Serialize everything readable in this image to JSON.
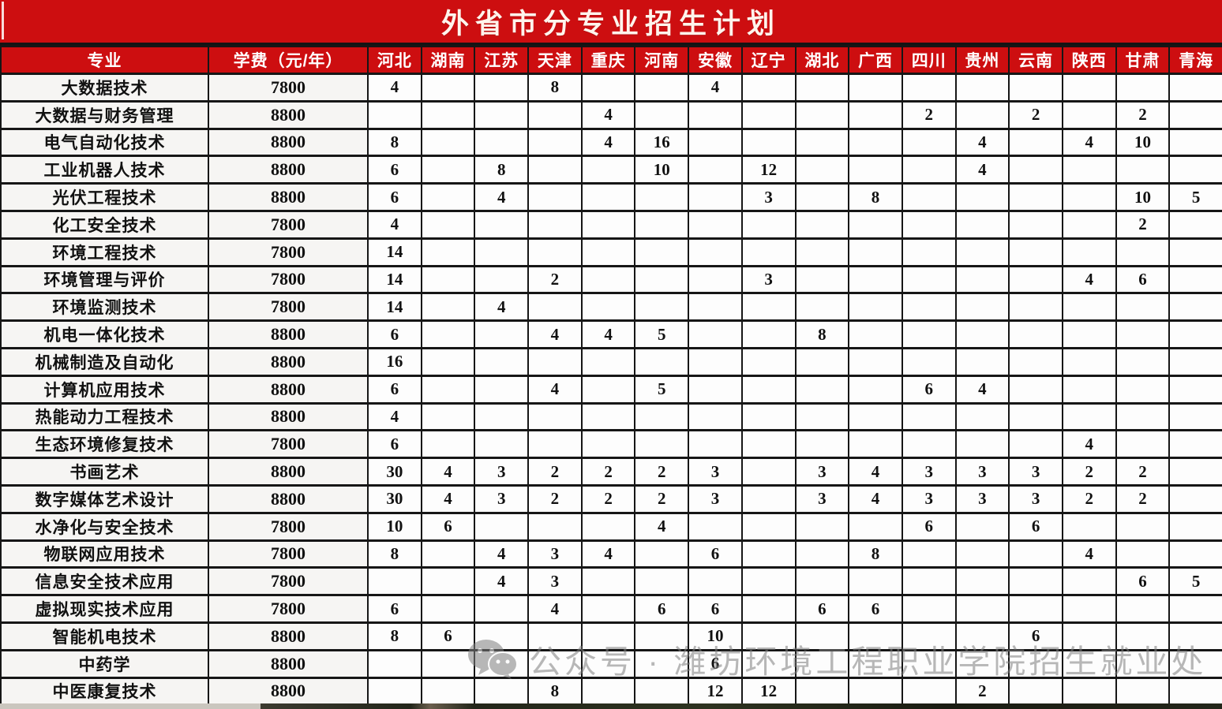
{
  "title": "外省市分专业招生计划",
  "watermark": {
    "icon": "wechat-icon",
    "text": "公众号 · 潍坊环境工程职业学院招生就业处"
  },
  "colors": {
    "title_bar_red": "#cd0e10",
    "header_red": "#cd0e10",
    "header_text": "#ffffff",
    "cell_border": "#161616",
    "left_column_bg": "#f6f5f3",
    "data_cell_bg": "#fdfdfd",
    "watermark_gray": "#7e7e7e"
  },
  "table": {
    "columns": [
      "专业",
      "学费（元/年）",
      "河北",
      "湖南",
      "江苏",
      "天津",
      "重庆",
      "河南",
      "安徽",
      "辽宁",
      "湖北",
      "广西",
      "四川",
      "贵州",
      "云南",
      "陕西",
      "甘肃",
      "青海"
    ],
    "rows": [
      {
        "major": "大数据技术",
        "tuition": "7800",
        "values": [
          "4",
          "",
          "",
          "8",
          "",
          "",
          "4",
          "",
          "",
          "",
          "",
          "",
          "",
          "",
          "",
          ""
        ]
      },
      {
        "major": "大数据与财务管理",
        "tuition": "8800",
        "values": [
          "",
          "",
          "",
          "",
          "4",
          "",
          "",
          "",
          "",
          "",
          "2",
          "",
          "2",
          "",
          "2",
          ""
        ]
      },
      {
        "major": "电气自动化技术",
        "tuition": "8800",
        "values": [
          "8",
          "",
          "",
          "",
          "4",
          "16",
          "",
          "",
          "",
          "",
          "",
          "4",
          "",
          "4",
          "10",
          ""
        ]
      },
      {
        "major": "工业机器人技术",
        "tuition": "8800",
        "values": [
          "6",
          "",
          "8",
          "",
          "",
          "10",
          "",
          "12",
          "",
          "",
          "",
          "4",
          "",
          "",
          "",
          ""
        ]
      },
      {
        "major": "光伏工程技术",
        "tuition": "8800",
        "values": [
          "6",
          "",
          "4",
          "",
          "",
          "",
          "",
          "3",
          "",
          "8",
          "",
          "",
          "",
          "",
          "10",
          "5"
        ]
      },
      {
        "major": "化工安全技术",
        "tuition": "7800",
        "values": [
          "4",
          "",
          "",
          "",
          "",
          "",
          "",
          "",
          "",
          "",
          "",
          "",
          "",
          "",
          "2",
          ""
        ]
      },
      {
        "major": "环境工程技术",
        "tuition": "7800",
        "values": [
          "14",
          "",
          "",
          "",
          "",
          "",
          "",
          "",
          "",
          "",
          "",
          "",
          "",
          "",
          "",
          ""
        ]
      },
      {
        "major": "环境管理与评价",
        "tuition": "7800",
        "values": [
          "14",
          "",
          "",
          "2",
          "",
          "",
          "",
          "3",
          "",
          "",
          "",
          "",
          "",
          "4",
          "6",
          ""
        ]
      },
      {
        "major": "环境监测技术",
        "tuition": "7800",
        "values": [
          "14",
          "",
          "4",
          "",
          "",
          "",
          "",
          "",
          "",
          "",
          "",
          "",
          "",
          "",
          "",
          ""
        ]
      },
      {
        "major": "机电一体化技术",
        "tuition": "8800",
        "values": [
          "6",
          "",
          "",
          "4",
          "4",
          "5",
          "",
          "",
          "8",
          "",
          "",
          "",
          "",
          "",
          "",
          ""
        ]
      },
      {
        "major": "机械制造及自动化",
        "tuition": "8800",
        "values": [
          "16",
          "",
          "",
          "",
          "",
          "",
          "",
          "",
          "",
          "",
          "",
          "",
          "",
          "",
          "",
          ""
        ]
      },
      {
        "major": "计算机应用技术",
        "tuition": "8800",
        "values": [
          "6",
          "",
          "",
          "4",
          "",
          "5",
          "",
          "",
          "",
          "",
          "6",
          "4",
          "",
          "",
          "",
          ""
        ]
      },
      {
        "major": "热能动力工程技术",
        "tuition": "8800",
        "values": [
          "4",
          "",
          "",
          "",
          "",
          "",
          "",
          "",
          "",
          "",
          "",
          "",
          "",
          "",
          "",
          ""
        ]
      },
      {
        "major": "生态环境修复技术",
        "tuition": "7800",
        "values": [
          "6",
          "",
          "",
          "",
          "",
          "",
          "",
          "",
          "",
          "",
          "",
          "",
          "",
          "4",
          "",
          ""
        ]
      },
      {
        "major": "书画艺术",
        "tuition": "8800",
        "values": [
          "30",
          "4",
          "3",
          "2",
          "2",
          "2",
          "3",
          "",
          "3",
          "4",
          "3",
          "3",
          "3",
          "2",
          "2",
          ""
        ]
      },
      {
        "major": "数字媒体艺术设计",
        "tuition": "8800",
        "values": [
          "30",
          "4",
          "3",
          "2",
          "2",
          "2",
          "3",
          "",
          "3",
          "4",
          "3",
          "3",
          "3",
          "2",
          "2",
          ""
        ]
      },
      {
        "major": "水净化与安全技术",
        "tuition": "7800",
        "values": [
          "10",
          "6",
          "",
          "",
          "",
          "4",
          "",
          "",
          "",
          "",
          "6",
          "",
          "6",
          "",
          "",
          ""
        ]
      },
      {
        "major": "物联网应用技术",
        "tuition": "7800",
        "values": [
          "8",
          "",
          "4",
          "3",
          "4",
          "",
          "6",
          "",
          "",
          "8",
          "",
          "",
          "",
          "4",
          "",
          ""
        ]
      },
      {
        "major": "信息安全技术应用",
        "tuition": "7800",
        "values": [
          "",
          "",
          "4",
          "3",
          "",
          "",
          "",
          "",
          "",
          "",
          "",
          "",
          "",
          "",
          "6",
          "5"
        ]
      },
      {
        "major": "虚拟现实技术应用",
        "tuition": "7800",
        "values": [
          "6",
          "",
          "",
          "4",
          "",
          "6",
          "6",
          "",
          "6",
          "6",
          "",
          "",
          "",
          "",
          "",
          ""
        ]
      },
      {
        "major": "智能机电技术",
        "tuition": "8800",
        "values": [
          "8",
          "6",
          "",
          "",
          "",
          "",
          "10",
          "",
          "",
          "",
          "",
          "",
          "6",
          "",
          "",
          ""
        ]
      },
      {
        "major": "中药学",
        "tuition": "8800",
        "values": [
          "",
          "",
          "",
          "",
          "",
          "",
          "6",
          "",
          "",
          "",
          "",
          "",
          "",
          "",
          "",
          ""
        ]
      },
      {
        "major": "中医康复技术",
        "tuition": "8800",
        "values": [
          "",
          "",
          "",
          "8",
          "",
          "",
          "12",
          "12",
          "",
          "",
          "",
          "2",
          "",
          "",
          "",
          ""
        ]
      }
    ]
  }
}
